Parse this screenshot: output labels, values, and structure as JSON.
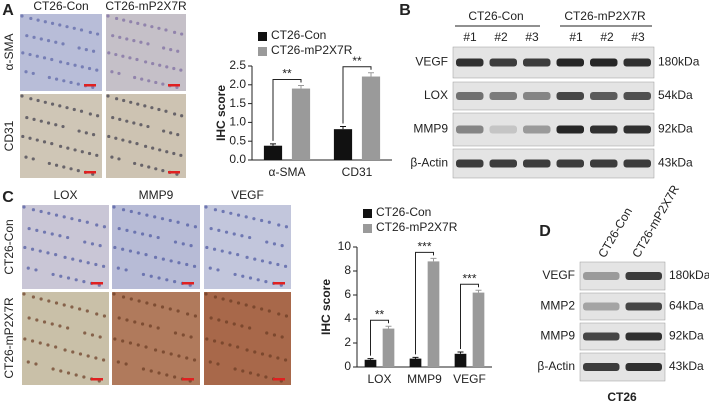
{
  "panels": {
    "A": {
      "letter": "A",
      "columns": [
        "CT26-Con",
        "CT26-mP2X7R"
      ],
      "rows": [
        "α-SMA",
        "CD31"
      ]
    },
    "B": {
      "letter": "B",
      "groups": [
        "CT26-Con",
        "CT26-mP2X7R"
      ],
      "lanes": [
        "#1",
        "#2",
        "#3",
        "#1",
        "#2",
        "#3"
      ],
      "proteins": [
        "VEGF",
        "LOX",
        "MMP9",
        "β-Actin"
      ],
      "sizes": [
        "180kDa",
        "54kDa",
        "92kDa",
        "43kDa"
      ]
    },
    "C": {
      "letter": "C",
      "columns": [
        "LOX",
        "MMP9",
        "VEGF"
      ],
      "rows": [
        "CT26-Con",
        "CT26-mP2X7R"
      ]
    },
    "D": {
      "letter": "D",
      "lanes": [
        "CT26-Con",
        "CT26-mP2X7R"
      ],
      "proteins": [
        "VEGF",
        "MMP2",
        "MMP9",
        "β-Actin"
      ],
      "sizes": [
        "180kDa",
        "64kDa",
        "92kDa",
        "43kDa"
      ],
      "caption": "CT26"
    }
  },
  "chart_data": [
    {
      "type": "bar",
      "y_label": "IHC score",
      "categories": [
        "α-SMA",
        "CD31"
      ],
      "series": [
        {
          "name": "CT26-Con",
          "color": "#111111",
          "values": [
            0.38,
            0.82
          ],
          "errors": [
            0.05,
            0.07
          ]
        },
        {
          "name": "CT26-mP2X7R",
          "color": "#9a9a9a",
          "values": [
            1.9,
            2.22
          ],
          "errors": [
            0.08,
            0.1
          ]
        }
      ],
      "annotations": [
        "**",
        "**"
      ],
      "ylim": [
        0,
        2.5
      ],
      "yticks": [
        {
          "value": 0,
          "label": "0.0"
        },
        0.5,
        {
          "value": 1,
          "label": "1.0"
        },
        1.5,
        {
          "value": 2,
          "label": "2.0"
        },
        2.5
      ]
    },
    {
      "type": "bar",
      "y_label": "IHC score",
      "categories": [
        "LOX",
        "MMP9",
        "VEGF"
      ],
      "series": [
        {
          "name": "CT26-Con",
          "color": "#111111",
          "values": [
            0.6,
            0.7,
            1.1
          ],
          "errors": [
            0.1,
            0.1,
            0.15
          ]
        },
        {
          "name": "CT26-mP2X7R",
          "color": "#9a9a9a",
          "values": [
            3.2,
            8.8,
            6.2
          ],
          "errors": [
            0.2,
            0.25,
            0.2
          ]
        }
      ],
      "annotations": [
        "**",
        "***",
        "***"
      ],
      "ylim": [
        0,
        10
      ],
      "yticks": [
        0,
        2,
        4,
        6,
        8,
        10
      ]
    }
  ]
}
